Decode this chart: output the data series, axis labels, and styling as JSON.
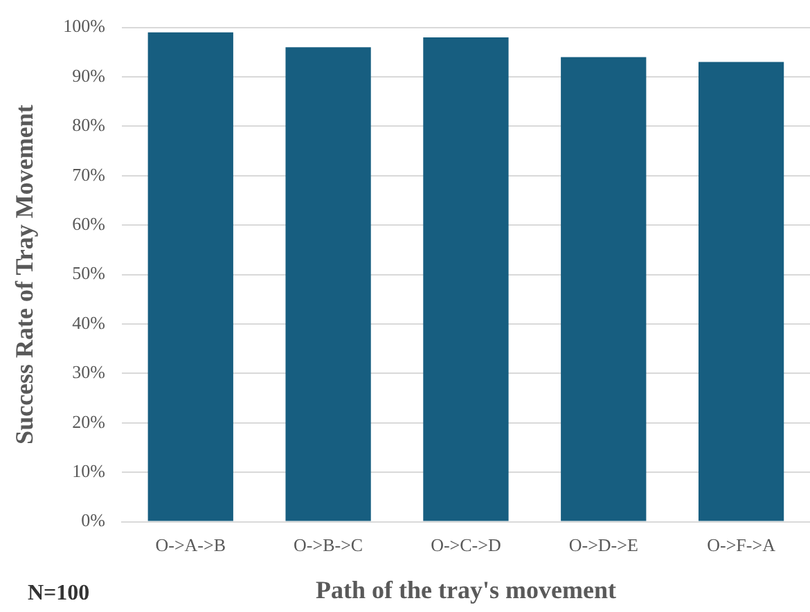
{
  "chart_data": {
    "type": "bar",
    "xlabel": "Path of the tray's movement",
    "ylabel": "Success Rate of Tray Movement",
    "categories": [
      "O->A->B",
      "O->B->C",
      "O->C->D",
      "O->D->E",
      "O->F->A"
    ],
    "values": [
      99,
      96,
      98,
      94,
      93
    ],
    "color": "#175e80",
    "ylim": [
      0,
      100
    ],
    "yticks": [
      {
        "value": 0,
        "label": "0%"
      },
      {
        "value": 10,
        "label": "10%"
      },
      {
        "value": 20,
        "label": "20%"
      },
      {
        "value": 30,
        "label": "30%"
      },
      {
        "value": 40,
        "label": "40%"
      },
      {
        "value": 50,
        "label": "50%"
      },
      {
        "value": 60,
        "label": "60%"
      },
      {
        "value": 70,
        "label": "70%"
      },
      {
        "value": 80,
        "label": "80%"
      },
      {
        "value": 90,
        "label": "90%"
      },
      {
        "value": 100,
        "label": "100%"
      }
    ],
    "grid": "y",
    "legend": false,
    "annotations": [
      "N=100"
    ]
  }
}
